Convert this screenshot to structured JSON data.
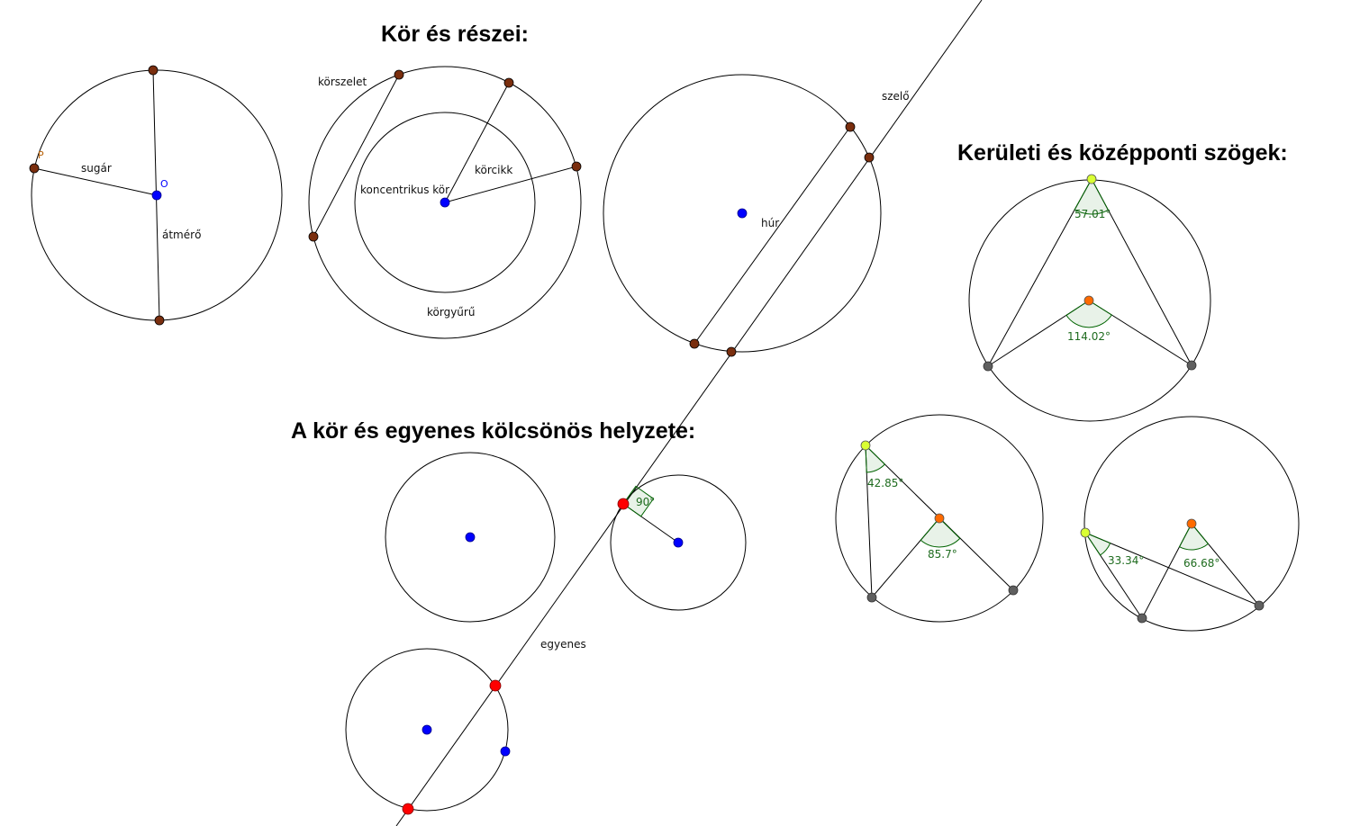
{
  "headings": {
    "parts": "Kör és részei:",
    "angles": "Kerületi és középponti szögek:",
    "positions": "A kör és egyenes kölcsönös helyzete:"
  },
  "labels": {
    "point_p": "P",
    "point_o": "O",
    "radius": "sugár",
    "diameter": "átmérő",
    "segment": "körszelet",
    "concentric": "koncentrikus kör",
    "sector": "körcikk",
    "annulus": "körgyűrű",
    "chord": "húr",
    "secant": "szelő",
    "line": "egyenes"
  },
  "angles": {
    "a1_inscribed": "57.01°",
    "a1_central": "114.02°",
    "a2_inscribed": "42.85°",
    "a2_central": "85.7°",
    "a3_inscribed": "33.34°",
    "a3_central": "66.68°",
    "tangent_right": "90°"
  },
  "colors": {
    "point_brown": "#7a2e0e",
    "point_blue": "#0000ff",
    "point_red": "#ff0000",
    "point_yellow": "#d9ff33",
    "point_orange": "#ff6a00",
    "point_gray": "#5f5f5f",
    "angle_text": "#1e6b1e"
  }
}
